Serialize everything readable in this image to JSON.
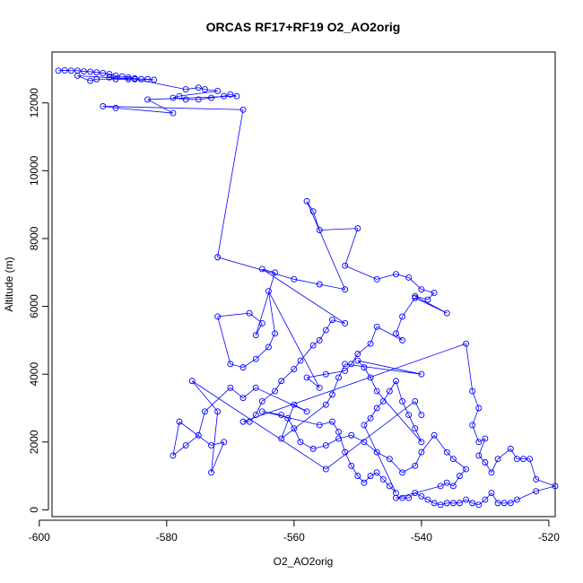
{
  "chart_data": {
    "type": "line",
    "title": "ORCAS RF17+RF19 O2_AO2orig",
    "xlabel": "O2_AO2orig",
    "ylabel": "Altitude (m)",
    "xlim": [
      -598,
      -519
    ],
    "ylim": [
      -200,
      13500
    ],
    "x_ticks": [
      -600,
      -580,
      -560,
      -540,
      -520
    ],
    "y_ticks": [
      0,
      2000,
      4000,
      6000,
      8000,
      10000,
      12000
    ],
    "grid": false,
    "legend": "none",
    "series_color": "#0000ff",
    "marker": "open-circle",
    "points": [
      [
        -597,
        12950
      ],
      [
        -596,
        12960
      ],
      [
        -595,
        12950
      ],
      [
        -594,
        12950
      ],
      [
        -593,
        12930
      ],
      [
        -592,
        12920
      ],
      [
        -591,
        12900
      ],
      [
        -590,
        12880
      ],
      [
        -589,
        12850
      ],
      [
        -588,
        12800
      ],
      [
        -587,
        12780
      ],
      [
        -586,
        12750
      ],
      [
        -585,
        12720
      ],
      [
        -584,
        12700
      ],
      [
        -583,
        12700
      ],
      [
        -582,
        12680
      ],
      [
        -589,
        12750
      ],
      [
        -588,
        12700
      ],
      [
        -586,
        12700
      ],
      [
        -591,
        12700
      ],
      [
        -592,
        12650
      ],
      [
        -594,
        12800
      ],
      [
        -585,
        12700
      ],
      [
        -577,
        12400
      ],
      [
        -575,
        12450
      ],
      [
        -574,
        12400
      ],
      [
        -572,
        12350
      ],
      [
        -578,
        12200
      ],
      [
        -579,
        12150
      ],
      [
        -577,
        12100
      ],
      [
        -575,
        12100
      ],
      [
        -573,
        12150
      ],
      [
        -571,
        12200
      ],
      [
        -570,
        12250
      ],
      [
        -569,
        12200
      ],
      [
        -583,
        12100
      ],
      [
        -579,
        11700
      ],
      [
        -588,
        11850
      ],
      [
        -590,
        11900
      ],
      [
        -568,
        11800
      ],
      [
        -572,
        7450
      ],
      [
        -560,
        6800
      ],
      [
        -556,
        6650
      ],
      [
        -552,
        6500
      ],
      [
        -558,
        9100
      ],
      [
        -557,
        8800
      ],
      [
        -556,
        8250
      ],
      [
        -550,
        8300
      ],
      [
        -552,
        7200
      ],
      [
        -547,
        6800
      ],
      [
        -544,
        6950
      ],
      [
        -542,
        6850
      ],
      [
        -540,
        6500
      ],
      [
        -538,
        6400
      ],
      [
        -539,
        6200
      ],
      [
        -541,
        6300
      ],
      [
        -536,
        5800
      ],
      [
        -541,
        6250
      ],
      [
        -543,
        5700
      ],
      [
        -544,
        5200
      ],
      [
        -543,
        5000
      ],
      [
        -547,
        5400
      ],
      [
        -548,
        4900
      ],
      [
        -550,
        4600
      ],
      [
        -551,
        4300
      ],
      [
        -552,
        4100
      ],
      [
        -555,
        4000
      ],
      [
        -558,
        3900
      ],
      [
        -556,
        3600
      ],
      [
        -564,
        6450
      ],
      [
        -563,
        5200
      ],
      [
        -564,
        4800
      ],
      [
        -566,
        4450
      ],
      [
        -568,
        4200
      ],
      [
        -570,
        4300
      ],
      [
        -572,
        5700
      ],
      [
        -567,
        5800
      ],
      [
        -565,
        5500
      ],
      [
        -566,
        5150
      ],
      [
        -563,
        7000
      ],
      [
        -565,
        7100
      ],
      [
        -552,
        5500
      ],
      [
        -554,
        5600
      ],
      [
        -555,
        5300
      ],
      [
        -556,
        5000
      ],
      [
        -557,
        4850
      ],
      [
        -559,
        4400
      ],
      [
        -560,
        4150
      ],
      [
        -562,
        3800
      ],
      [
        -563,
        3500
      ],
      [
        -565,
        3200
      ],
      [
        -566,
        2800
      ],
      [
        -567,
        2600
      ],
      [
        -568,
        2600
      ],
      [
        -533,
        4900
      ],
      [
        -532,
        3500
      ],
      [
        -531,
        3000
      ],
      [
        -532,
        2500
      ],
      [
        -531,
        2000
      ],
      [
        -530,
        2100
      ],
      [
        -531,
        1600
      ],
      [
        -530,
        1400
      ],
      [
        -529,
        1100
      ],
      [
        -528,
        1500
      ],
      [
        -526,
        1800
      ],
      [
        -525,
        1500
      ],
      [
        -524,
        1500
      ],
      [
        -523,
        1500
      ],
      [
        -522,
        900
      ],
      [
        -519,
        700
      ],
      [
        -522,
        550
      ],
      [
        -525,
        300
      ],
      [
        -526,
        200
      ],
      [
        -527,
        200
      ],
      [
        -528,
        200
      ],
      [
        -529,
        500
      ],
      [
        -530,
        300
      ],
      [
        -531,
        150
      ],
      [
        -532,
        200
      ],
      [
        -533,
        300
      ],
      [
        -534,
        200
      ],
      [
        -535,
        200
      ],
      [
        -536,
        200
      ],
      [
        -537,
        150
      ],
      [
        -538,
        200
      ],
      [
        -539,
        300
      ],
      [
        -540,
        400
      ],
      [
        -541,
        500
      ],
      [
        -542,
        350
      ],
      [
        -543,
        350
      ],
      [
        -544,
        350
      ],
      [
        -537,
        700
      ],
      [
        -536,
        800
      ],
      [
        -535,
        700
      ],
      [
        -534,
        1000
      ],
      [
        -533,
        1200
      ],
      [
        -535,
        1500
      ],
      [
        -536,
        1700
      ],
      [
        -538,
        2200
      ],
      [
        -540,
        1700
      ],
      [
        -541,
        1300
      ],
      [
        -543,
        1100
      ],
      [
        -545,
        1500
      ],
      [
        -547,
        1700
      ],
      [
        -549,
        2000
      ],
      [
        -551,
        2200
      ],
      [
        -553,
        2100
      ],
      [
        -555,
        1900
      ],
      [
        -557,
        1800
      ],
      [
        -559,
        2000
      ],
      [
        -560,
        2400
      ],
      [
        -561,
        2700
      ],
      [
        -562,
        2800
      ],
      [
        -565,
        2900
      ],
      [
        -556,
        2500
      ],
      [
        -554,
        2600
      ],
      [
        -553,
        2300
      ],
      [
        -552,
        1700
      ],
      [
        -551,
        1300
      ],
      [
        -550,
        1000
      ],
      [
        -549,
        800
      ],
      [
        -548,
        1000
      ],
      [
        -547,
        1100
      ],
      [
        -546,
        900
      ],
      [
        -545,
        700
      ],
      [
        -544,
        500
      ],
      [
        -549,
        2500
      ],
      [
        -548,
        2700
      ],
      [
        -547,
        3000
      ],
      [
        -546,
        3200
      ],
      [
        -545,
        3500
      ],
      [
        -544,
        3800
      ],
      [
        -543,
        3200
      ],
      [
        -542,
        2800
      ],
      [
        -541,
        2400
      ],
      [
        -540,
        2000
      ],
      [
        -547,
        3500
      ],
      [
        -548,
        3900
      ],
      [
        -549,
        4200
      ],
      [
        -550,
        4400
      ],
      [
        -540,
        4000
      ],
      [
        -552,
        4300
      ],
      [
        -553,
        3900
      ],
      [
        -554,
        3400
      ],
      [
        -555,
        3100
      ],
      [
        -562,
        2100
      ],
      [
        -560,
        3100
      ],
      [
        -558,
        2900
      ],
      [
        -566,
        3600
      ],
      [
        -568,
        3300
      ],
      [
        -570,
        3600
      ],
      [
        -574,
        2900
      ],
      [
        -575,
        2200
      ],
      [
        -577,
        1900
      ],
      [
        -579,
        1600
      ],
      [
        -578,
        2600
      ],
      [
        -573,
        1900
      ],
      [
        -571,
        2000
      ],
      [
        -573,
        1100
      ],
      [
        -572,
        2900
      ],
      [
        -576,
        3800
      ],
      [
        -555,
        1200
      ],
      [
        -541,
        3200
      ],
      [
        -540,
        2800
      ]
    ]
  }
}
